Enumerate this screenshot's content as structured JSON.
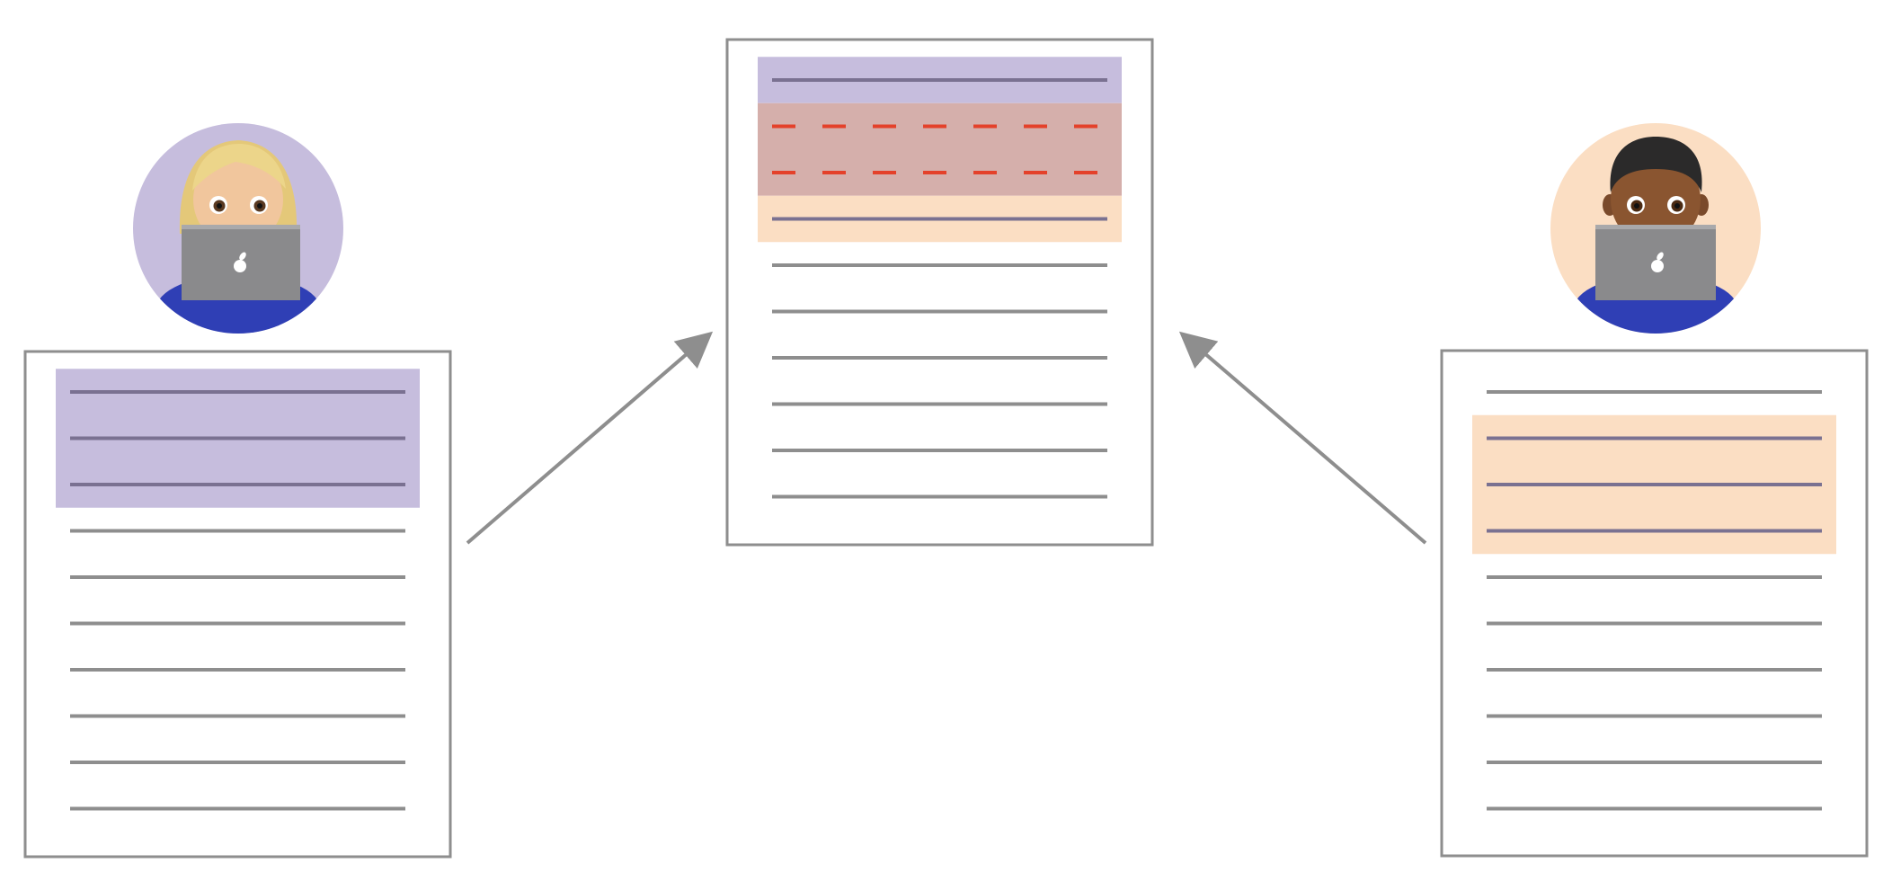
{
  "colors": {
    "document_border": "#8e8e8e",
    "text_line": "#8e8e8e",
    "highlight_line": "#7a7191",
    "purple_highlight": "#c6bddd",
    "peach_highlight": "#fbdec3",
    "conflict_highlight": "#d5afab",
    "conflict_dash": "#e4412a",
    "arrow": "#8e8e8e",
    "laptop": "#8a8a8c",
    "shirt": "#2f3fb5"
  },
  "left_editor": {
    "avatar_icon": "woman-technologist-light-skin-icon",
    "avatar_background": "#c6bddd",
    "document": {
      "line_count": 10,
      "highlighted_lines": [
        0,
        1,
        2
      ]
    }
  },
  "right_editor": {
    "avatar_icon": "man-technologist-dark-skin-icon",
    "avatar_background": "#fbdec3",
    "document": {
      "line_count": 10,
      "highlighted_lines": [
        1,
        2,
        3
      ]
    }
  },
  "merged_document": {
    "line_count": 10,
    "purple_lines": [
      0
    ],
    "conflict_lines": [
      1,
      2
    ],
    "peach_lines": [
      3
    ]
  },
  "arrows": [
    {
      "from": "left-document",
      "to": "merged-document"
    },
    {
      "from": "right-document",
      "to": "merged-document"
    }
  ]
}
